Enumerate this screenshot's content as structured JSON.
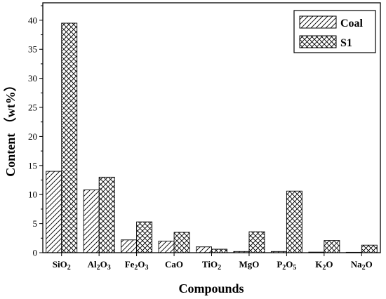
{
  "chart_data": {
    "type": "bar",
    "categories": [
      "SiO2",
      "Al2O3",
      "Fe2O3",
      "CaO",
      "TiO2",
      "MgO",
      "P2O5",
      "K2O",
      "Na2O"
    ],
    "category_labels": [
      [
        {
          "t": "SiO"
        },
        {
          "t": "2",
          "sub": true
        }
      ],
      [
        {
          "t": "Al"
        },
        {
          "t": "2",
          "sub": true
        },
        {
          "t": "O"
        },
        {
          "t": "3",
          "sub": true
        }
      ],
      [
        {
          "t": "Fe"
        },
        {
          "t": "2",
          "sub": true
        },
        {
          "t": "O"
        },
        {
          "t": "3",
          "sub": true
        }
      ],
      [
        {
          "t": "CaO"
        }
      ],
      [
        {
          "t": "TiO"
        },
        {
          "t": "2",
          "sub": true
        }
      ],
      [
        {
          "t": "MgO"
        }
      ],
      [
        {
          "t": "P"
        },
        {
          "t": "2",
          "sub": true
        },
        {
          "t": "O"
        },
        {
          "t": "5",
          "sub": true
        }
      ],
      [
        {
          "t": "K"
        },
        {
          "t": "2",
          "sub": true
        },
        {
          "t": "O"
        }
      ],
      [
        {
          "t": "Na"
        },
        {
          "t": "2",
          "sub": true
        },
        {
          "t": "O"
        }
      ]
    ],
    "series": [
      {
        "name": "Coal",
        "pattern": "diagonal-hatch",
        "values": [
          14.0,
          10.8,
          2.2,
          2.0,
          1.0,
          0.2,
          0.2,
          0.1,
          0.0
        ]
      },
      {
        "name": "S1",
        "pattern": "cross-hatch",
        "values": [
          39.5,
          13.0,
          5.3,
          3.5,
          0.6,
          3.6,
          10.6,
          2.1,
          1.3
        ]
      }
    ],
    "xlabel": "Compounds",
    "ylabel": "Content （wt%）",
    "ylim": [
      0,
      43
    ],
    "yticks": [
      0,
      5,
      10,
      15,
      20,
      25,
      30,
      35,
      40
    ],
    "grid": false,
    "legend_position": "top-right"
  }
}
